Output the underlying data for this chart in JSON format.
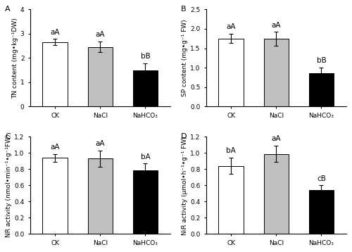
{
  "panels": [
    {
      "label": "A",
      "ylabel": "TN content (mg•kg⁻¹DW)",
      "categories": [
        "CK",
        "NaCl",
        "NaHCO₃"
      ],
      "values": [
        2.65,
        2.45,
        1.48
      ],
      "errors": [
        0.13,
        0.22,
        0.3
      ],
      "sig_labels": [
        "aA",
        "aA",
        "bB"
      ],
      "ylim": [
        0,
        4
      ],
      "yticks": [
        0,
        1,
        2,
        3,
        4
      ],
      "bar_colors": [
        "white",
        "#c0c0c0",
        "black"
      ],
      "bar_edgecolor": "black"
    },
    {
      "label": "B",
      "ylabel": "SP content (mg•g⁻¹ FW)",
      "categories": [
        "CK",
        "NaCl",
        "NaHCO₃"
      ],
      "values": [
        1.75,
        1.74,
        0.86
      ],
      "errors": [
        0.12,
        0.18,
        0.14
      ],
      "sig_labels": [
        "aA",
        "aA",
        "bB"
      ],
      "ylim": [
        0,
        2.5
      ],
      "yticks": [
        0.0,
        0.5,
        1.0,
        1.5,
        2.0,
        2.5
      ],
      "bar_colors": [
        "white",
        "#c0c0c0",
        "black"
      ],
      "bar_edgecolor": "black"
    },
    {
      "label": "C",
      "ylabel": "NR activity (nmol•min⁻¹•g⁻¹FW)",
      "categories": [
        "CK",
        "NaCl",
        "NaHCO₃"
      ],
      "values": [
        0.94,
        0.93,
        0.79
      ],
      "errors": [
        0.05,
        0.1,
        0.08
      ],
      "sig_labels": [
        "aA",
        "aA",
        "bA"
      ],
      "ylim": [
        0,
        1.2
      ],
      "yticks": [
        0,
        0.2,
        0.4,
        0.6,
        0.8,
        1.0,
        1.2
      ],
      "bar_colors": [
        "white",
        "#c0c0c0",
        "black"
      ],
      "bar_edgecolor": "black"
    },
    {
      "label": "D",
      "ylabel": "NiR activity (μmol•h⁻¹•g⁻¹ FW)",
      "categories": [
        "CK",
        "NaCl",
        "NaHCO₃"
      ],
      "values": [
        0.84,
        0.99,
        0.54
      ],
      "errors": [
        0.1,
        0.1,
        0.06
      ],
      "sig_labels": [
        "bA",
        "aA",
        "cB"
      ],
      "ylim": [
        0,
        1.2
      ],
      "yticks": [
        0,
        0.2,
        0.4,
        0.6,
        0.8,
        1.0,
        1.2
      ],
      "bar_colors": [
        "white",
        "#c0c0c0",
        "black"
      ],
      "bar_edgecolor": "black"
    }
  ],
  "fig_width": 5.0,
  "fig_height": 3.58,
  "dpi": 100,
  "bar_width": 0.55,
  "fontsize_label": 6.5,
  "fontsize_tick": 6.5,
  "fontsize_sig": 7.5,
  "fontsize_panel": 8,
  "background_color": "#ffffff"
}
